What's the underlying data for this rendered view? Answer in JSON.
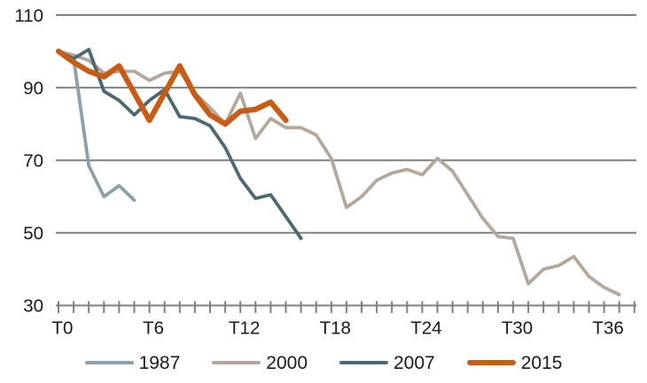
{
  "chart_data": {
    "type": "line",
    "title": "",
    "xlabel": "",
    "ylabel": "",
    "x_axis_unit_prefix": "T",
    "x_labels": [
      {
        "t": 0,
        "label": "T0"
      },
      {
        "t": 6,
        "label": "T6"
      },
      {
        "t": 12,
        "label": "T12"
      },
      {
        "t": 18,
        "label": "T18"
      },
      {
        "t": 24,
        "label": "T24"
      },
      {
        "t": 30,
        "label": "T30"
      },
      {
        "t": 36,
        "label": "T36"
      }
    ],
    "x_ticks_total": 39,
    "y_ticks": [
      110,
      90,
      70,
      50,
      30
    ],
    "ylim": [
      30,
      110
    ],
    "xlim": [
      0,
      38
    ],
    "grid": "horizontal",
    "legend_position": "bottom",
    "colors": {
      "grid": "#7f7f7f",
      "axis": "#7f7f7f",
      "text": "#1a1a1a",
      "background": "#ffffff"
    },
    "series": [
      {
        "name": "1987",
        "color": "#8c9fab",
        "stroke_width": 3.8,
        "x_start": 0,
        "values": [
          100,
          98,
          68.5,
          60,
          63,
          59
        ]
      },
      {
        "name": "2000",
        "color": "#b4a89c",
        "stroke_width": 3.8,
        "x_start": 0,
        "values": [
          100,
          99,
          97.5,
          94,
          94.5,
          94.5,
          92,
          94,
          94.5,
          88.5,
          84.5,
          80,
          88.5,
          76,
          81.5,
          79,
          79,
          77,
          70.5,
          57,
          60,
          64.5,
          66.5,
          67.5,
          66,
          70.5,
          67,
          60.5,
          54,
          49,
          48.5,
          36,
          40,
          41,
          43.5,
          38,
          35,
          33
        ]
      },
      {
        "name": "2007",
        "color": "#4d6873",
        "stroke_width": 3.8,
        "x_start": 0,
        "values": [
          100,
          98,
          100.5,
          89,
          86.5,
          82.5,
          86.5,
          89.5,
          82,
          81.5,
          79.5,
          73.5,
          65,
          59.5,
          60.5,
          54.5,
          48.5
        ]
      },
      {
        "name": "2015",
        "color": "#c85c15",
        "stroke_width": 6.2,
        "x_start": 0,
        "values": [
          100,
          97,
          94.5,
          93,
          96,
          88.5,
          81,
          88.5,
          96,
          88,
          82.5,
          80,
          83.5,
          84,
          86,
          81
        ]
      }
    ]
  }
}
